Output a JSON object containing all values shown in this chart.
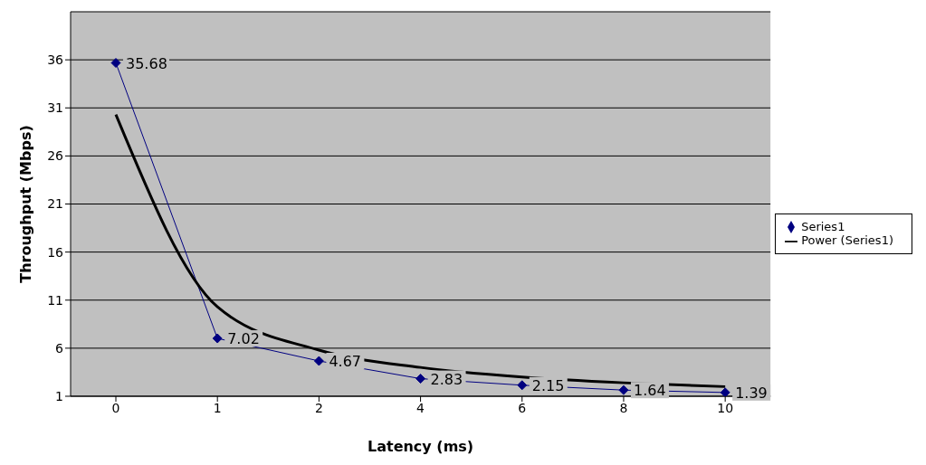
{
  "chart_data": {
    "type": "line",
    "xlabel": "Latency (ms)",
    "ylabel": "Throughput (Mbps)",
    "categories": [
      "0",
      "1",
      "2",
      "4",
      "6",
      "8",
      "10"
    ],
    "series": [
      {
        "name": "Series1",
        "color": "#000080",
        "values": [
          35.68,
          7.02,
          4.67,
          2.83,
          2.15,
          1.64,
          1.39
        ],
        "marker": "diamond",
        "data_labels": true
      },
      {
        "name": "Power (Series1)",
        "color": "#000000",
        "values": [
          30.3,
          10.3,
          5.8,
          4.0,
          3.0,
          2.4,
          2.0
        ],
        "marker": "none"
      }
    ],
    "ylim": [
      1,
      41
    ],
    "yticks": [
      1,
      6,
      11,
      16,
      21,
      26,
      31,
      36
    ],
    "grid": "y",
    "legend": "right"
  }
}
